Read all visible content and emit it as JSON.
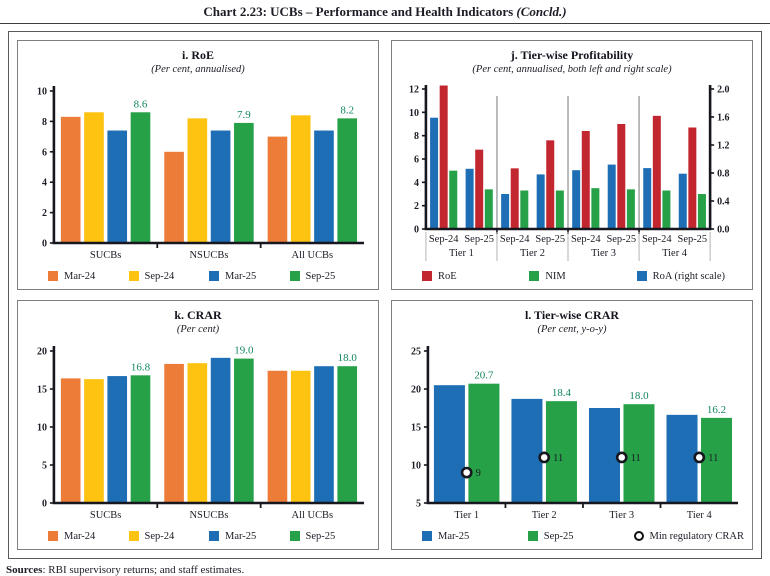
{
  "figure": {
    "title": "Chart 2.23: UCBs – Performance and Health Indicators ",
    "title_suffix": "(Concld.)",
    "sources_label": "Sources",
    "sources_text": ": RBI supervisory returns; and staff estimates."
  },
  "colors": {
    "orange": "#ED7C38",
    "gold": "#FEC211",
    "blue": "#1E6EB5",
    "green": "#26A147",
    "red": "#C2262E",
    "value_label": "#12875D",
    "axis": "#17171F",
    "separator": "#8F8F8F",
    "label_separator": "#B3B3B3"
  },
  "chart_data": [
    {
      "id": "roe",
      "type": "grouped_bar",
      "title": "i. RoE",
      "subtitle": "(Per cent, annualised)",
      "categories": [
        "SUCBs",
        "NSUCBs",
        "All UCBs"
      ],
      "series": [
        {
          "name": "Mar-24",
          "color_key": "orange",
          "values": [
            8.3,
            6.0,
            7.0
          ]
        },
        {
          "name": "Sep-24",
          "color_key": "gold",
          "values": [
            8.6,
            8.2,
            8.4
          ]
        },
        {
          "name": "Mar-25",
          "color_key": "blue",
          "values": [
            7.4,
            7.4,
            7.4
          ]
        },
        {
          "name": "Sep-25",
          "color_key": "green",
          "values": [
            8.6,
            7.9,
            8.2
          ],
          "labels": [
            "8.6",
            "7.9",
            "8.2"
          ]
        }
      ],
      "ylim": [
        0,
        10
      ],
      "yticks": [
        0,
        2,
        4,
        6,
        8,
        10
      ],
      "grid": false,
      "legend_position": "bottom"
    },
    {
      "id": "tier-profitability",
      "type": "dual_axis_bar",
      "title": "j. Tier-wise Profitability",
      "subtitle": "(Per cent, annualised, both left and right scale)",
      "groups": [
        "Tier 1",
        "Tier 2",
        "Tier 3",
        "Tier 4"
      ],
      "sub_categories": [
        "Sep-24",
        "Sep-25"
      ],
      "series": [
        {
          "name": "RoA (right scale)",
          "color_key": "blue",
          "axis": "right",
          "values": [
            1.59,
            0.86,
            0.5,
            0.78,
            0.84,
            0.92,
            0.87,
            0.79
          ]
        },
        {
          "name": "RoE",
          "color_key": "red",
          "axis": "left",
          "values": [
            12.3,
            6.8,
            5.2,
            7.6,
            8.4,
            9.0,
            9.7,
            8.7
          ]
        },
        {
          "name": "NIM",
          "color_key": "green",
          "axis": "left",
          "values": [
            5.0,
            3.4,
            3.3,
            3.3,
            3.5,
            3.4,
            3.3,
            3.0
          ]
        }
      ],
      "legend_order": [
        "RoE",
        "NIM",
        "RoA (right scale)"
      ],
      "ylim_left": [
        0,
        12
      ],
      "yticks_left": [
        0,
        2,
        4,
        6,
        8,
        10,
        12
      ],
      "ylim_right": [
        0,
        2
      ],
      "yticks_right": [
        "0.0",
        "0.4",
        "0.8",
        "1.2",
        "1.6",
        "2.0"
      ],
      "grid": false,
      "legend_position": "bottom"
    },
    {
      "id": "crar",
      "type": "grouped_bar",
      "title": "k. CRAR",
      "subtitle": "(Per cent)",
      "categories": [
        "SUCBs",
        "NSUCBs",
        "All UCBs"
      ],
      "series": [
        {
          "name": "Mar-24",
          "color_key": "orange",
          "values": [
            16.4,
            18.3,
            17.4
          ]
        },
        {
          "name": "Sep-24",
          "color_key": "gold",
          "values": [
            16.3,
            18.4,
            17.4
          ]
        },
        {
          "name": "Mar-25",
          "color_key": "blue",
          "values": [
            16.7,
            19.1,
            18.0
          ]
        },
        {
          "name": "Sep-25",
          "color_key": "green",
          "values": [
            16.8,
            19.0,
            18.0
          ],
          "labels": [
            "16.8",
            "19.0",
            "18.0"
          ]
        }
      ],
      "ylim": [
        0,
        20
      ],
      "yticks": [
        0,
        5,
        10,
        15,
        20
      ],
      "grid": false,
      "legend_position": "bottom"
    },
    {
      "id": "tier-crar",
      "type": "grouped_bar_markers",
      "title": "l. Tier-wise CRAR",
      "subtitle": "(Per cent, y-o-y)",
      "categories": [
        "Tier 1",
        "Tier 2",
        "Tier 3",
        "Tier 4"
      ],
      "series": [
        {
          "name": "Mar-25",
          "color_key": "blue",
          "values": [
            20.5,
            18.7,
            17.5,
            16.6
          ]
        },
        {
          "name": "Sep-25",
          "color_key": "green",
          "values": [
            20.7,
            18.4,
            18.0,
            16.2
          ],
          "labels": [
            "20.7",
            "18.4",
            "18.0",
            "16.2"
          ]
        }
      ],
      "markers": {
        "name": "Min regulatory CRAR",
        "values": [
          9,
          11,
          11,
          11
        ],
        "labels": [
          "9",
          "11",
          "11",
          "11"
        ]
      },
      "ylim": [
        5,
        25
      ],
      "yticks": [
        5,
        10,
        15,
        20,
        25
      ],
      "grid": false,
      "legend_position": "bottom"
    }
  ]
}
